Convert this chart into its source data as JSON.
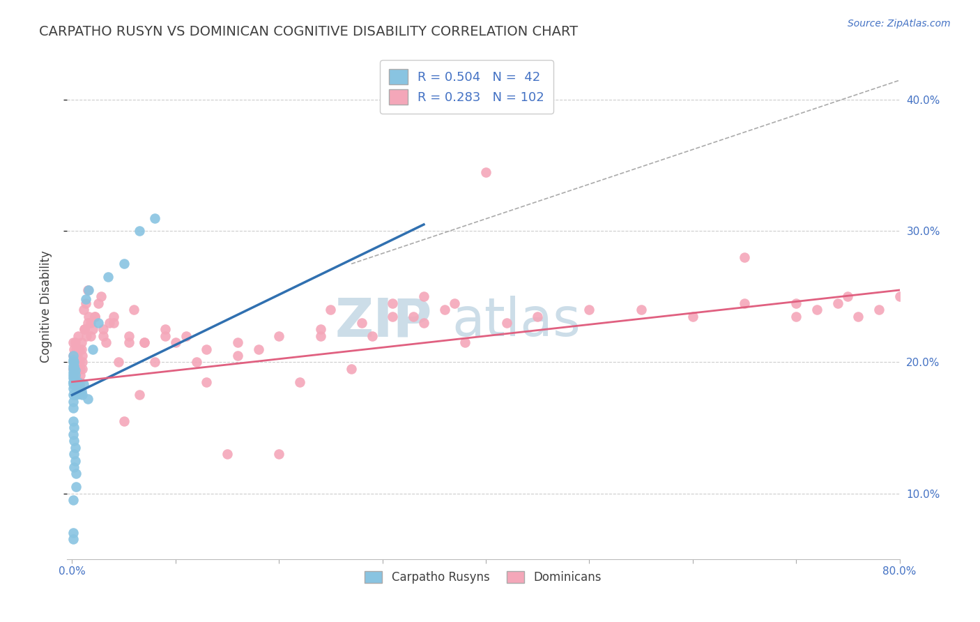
{
  "title": "CARPATHO RUSYN VS DOMINICAN COGNITIVE DISABILITY CORRELATION CHART",
  "source": "Source: ZipAtlas.com",
  "ylabel": "Cognitive Disability",
  "xlim": [
    -0.005,
    0.8
  ],
  "ylim": [
    0.05,
    0.435
  ],
  "yticks": [
    0.1,
    0.2,
    0.3,
    0.4
  ],
  "ytick_labels": [
    "10.0%",
    "20.0%",
    "30.0%",
    "40.0%"
  ],
  "xtick_positions": [
    0.0,
    0.1,
    0.2,
    0.3,
    0.4,
    0.5,
    0.6,
    0.7,
    0.8
  ],
  "xtick_labels": [
    "0.0%",
    "",
    "",
    "",
    "",
    "",
    "",
    "",
    "80.0%"
  ],
  "blue_color": "#89c4e1",
  "pink_color": "#f4a7b9",
  "blue_line_color": "#3070b0",
  "pink_line_color": "#e06080",
  "text_color": "#4472c4",
  "title_color": "#404040",
  "R_blue": 0.504,
  "N_blue": 42,
  "R_pink": 0.283,
  "N_pink": 102,
  "legend_label_blue": "Carpatho Rusyns",
  "legend_label_pink": "Dominicans",
  "blue_line_x": [
    0.0,
    0.34
  ],
  "blue_line_y_start": 0.175,
  "blue_line_y_end": 0.305,
  "pink_line_x": [
    0.0,
    0.8
  ],
  "pink_line_y_start": 0.185,
  "pink_line_y_end": 0.255,
  "dash_line_x": [
    0.27,
    0.8
  ],
  "dash_line_y": [
    0.275,
    0.415
  ],
  "blue_scatter_x": [
    0.001,
    0.001,
    0.001,
    0.001,
    0.001,
    0.001,
    0.001,
    0.001,
    0.001,
    0.001,
    0.002,
    0.002,
    0.002,
    0.002,
    0.002,
    0.003,
    0.003,
    0.003,
    0.004,
    0.004,
    0.004,
    0.005,
    0.005,
    0.006,
    0.006,
    0.007,
    0.008,
    0.009,
    0.01,
    0.011,
    0.013,
    0.015,
    0.016,
    0.02,
    0.025,
    0.035,
    0.05,
    0.065,
    0.08,
    0.001,
    0.001,
    0.001
  ],
  "blue_scatter_y": [
    0.195,
    0.197,
    0.2,
    0.202,
    0.205,
    0.19,
    0.192,
    0.188,
    0.185,
    0.183,
    0.192,
    0.188,
    0.195,
    0.197,
    0.2,
    0.185,
    0.19,
    0.194,
    0.182,
    0.178,
    0.175,
    0.182,
    0.178,
    0.185,
    0.18,
    0.182,
    0.176,
    0.178,
    0.175,
    0.183,
    0.248,
    0.172,
    0.255,
    0.21,
    0.23,
    0.265,
    0.275,
    0.3,
    0.31,
    0.095,
    0.07,
    0.065
  ],
  "blue_scatter_x2": [
    0.001,
    0.001,
    0.001,
    0.001,
    0.001,
    0.001,
    0.001,
    0.002,
    0.002,
    0.002,
    0.002,
    0.003,
    0.003,
    0.004,
    0.004
  ],
  "blue_scatter_y2": [
    0.185,
    0.18,
    0.175,
    0.17,
    0.165,
    0.155,
    0.145,
    0.15,
    0.14,
    0.13,
    0.12,
    0.135,
    0.125,
    0.115,
    0.105
  ],
  "pink_scatter_x": [
    0.001,
    0.001,
    0.001,
    0.002,
    0.002,
    0.003,
    0.003,
    0.004,
    0.004,
    0.005,
    0.005,
    0.006,
    0.006,
    0.007,
    0.008,
    0.008,
    0.009,
    0.01,
    0.01,
    0.011,
    0.012,
    0.013,
    0.014,
    0.015,
    0.016,
    0.018,
    0.02,
    0.022,
    0.025,
    0.028,
    0.03,
    0.033,
    0.036,
    0.04,
    0.045,
    0.05,
    0.055,
    0.06,
    0.065,
    0.07,
    0.08,
    0.09,
    0.1,
    0.11,
    0.12,
    0.13,
    0.15,
    0.16,
    0.18,
    0.2,
    0.22,
    0.24,
    0.25,
    0.27,
    0.29,
    0.31,
    0.33,
    0.34,
    0.36,
    0.38,
    0.002,
    0.003,
    0.004,
    0.005,
    0.006,
    0.007,
    0.008,
    0.009,
    0.01,
    0.012,
    0.015,
    0.018,
    0.022,
    0.03,
    0.04,
    0.055,
    0.07,
    0.09,
    0.13,
    0.16,
    0.2,
    0.24,
    0.28,
    0.31,
    0.34,
    0.37,
    0.4,
    0.42,
    0.45,
    0.5,
    0.55,
    0.6,
    0.65,
    0.7,
    0.72,
    0.74,
    0.76,
    0.78,
    0.8,
    0.65,
    0.7,
    0.75
  ],
  "pink_scatter_y": [
    0.205,
    0.215,
    0.195,
    0.21,
    0.2,
    0.19,
    0.215,
    0.2,
    0.21,
    0.205,
    0.195,
    0.22,
    0.185,
    0.21,
    0.195,
    0.185,
    0.215,
    0.205,
    0.195,
    0.24,
    0.225,
    0.245,
    0.22,
    0.255,
    0.235,
    0.23,
    0.225,
    0.235,
    0.245,
    0.25,
    0.225,
    0.215,
    0.23,
    0.235,
    0.2,
    0.155,
    0.22,
    0.24,
    0.175,
    0.215,
    0.2,
    0.22,
    0.215,
    0.22,
    0.2,
    0.185,
    0.13,
    0.205,
    0.21,
    0.13,
    0.185,
    0.22,
    0.24,
    0.195,
    0.22,
    0.245,
    0.235,
    0.25,
    0.24,
    0.215,
    0.19,
    0.185,
    0.195,
    0.2,
    0.18,
    0.2,
    0.19,
    0.21,
    0.2,
    0.225,
    0.23,
    0.22,
    0.235,
    0.22,
    0.23,
    0.215,
    0.215,
    0.225,
    0.21,
    0.215,
    0.22,
    0.225,
    0.23,
    0.235,
    0.23,
    0.245,
    0.345,
    0.23,
    0.235,
    0.24,
    0.24,
    0.235,
    0.245,
    0.235,
    0.24,
    0.245,
    0.235,
    0.24,
    0.25,
    0.28,
    0.245,
    0.25
  ],
  "background_color": "#ffffff",
  "grid_color": "#cccccc",
  "watermark_color": "#ccdde8"
}
